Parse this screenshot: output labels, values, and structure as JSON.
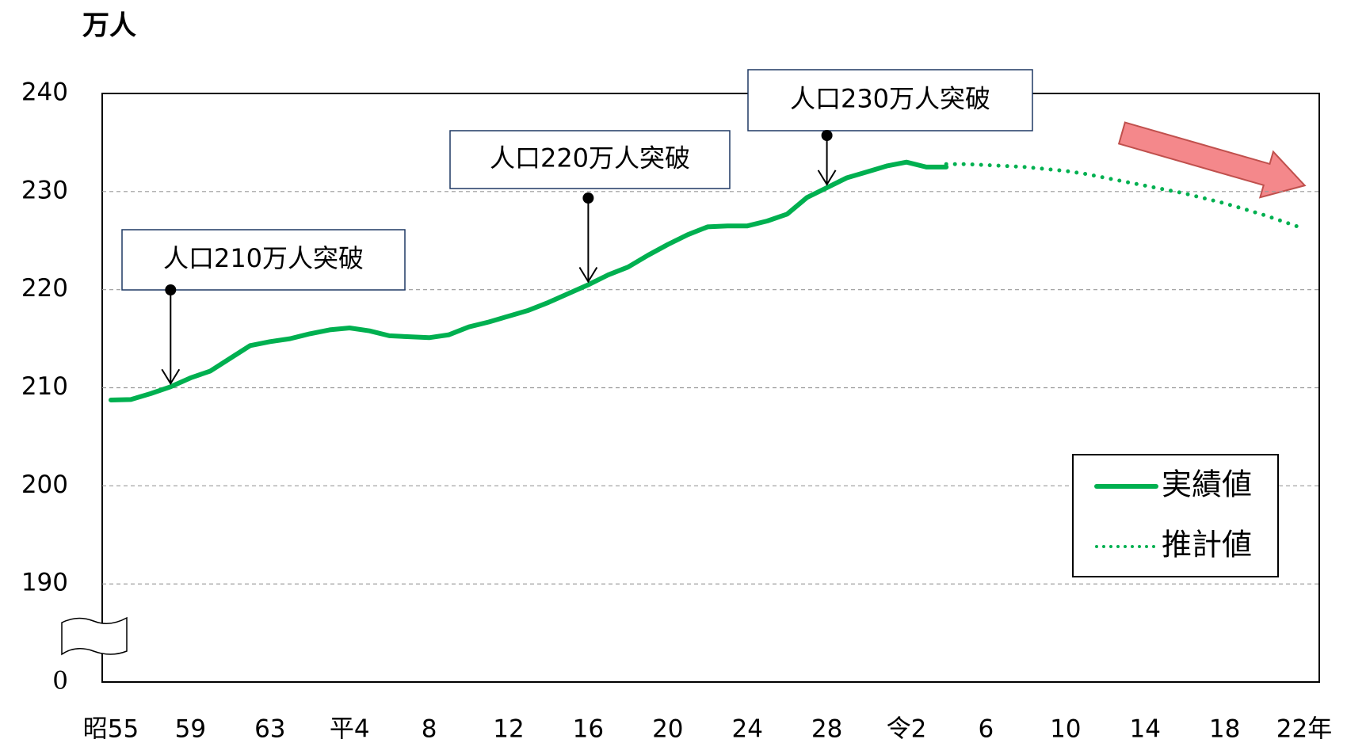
{
  "chart_data": {
    "type": "line",
    "y_label": "万人",
    "categories": [
      "昭55",
      null,
      null,
      null,
      "59",
      null,
      null,
      null,
      "63",
      null,
      null,
      null,
      "平4",
      null,
      null,
      null,
      "8",
      null,
      null,
      null,
      "12",
      null,
      null,
      null,
      "16",
      null,
      null,
      null,
      "20",
      null,
      null,
      null,
      "24",
      null,
      null,
      null,
      "28",
      null,
      null,
      null,
      "令2",
      null,
      null,
      null,
      "6",
      null,
      null,
      null,
      "10",
      null,
      null,
      null,
      "14",
      null,
      null,
      null,
      "18",
      null,
      null,
      null,
      "22年"
    ],
    "series": [
      {
        "name": "実績値",
        "color": "#00b050",
        "style": "solid",
        "values": [
          208.75,
          208.8,
          209.4,
          210.1,
          211.0,
          211.7,
          213.0,
          214.3,
          214.7,
          215.0,
          215.5,
          215.9,
          216.1,
          215.8,
          215.3,
          215.2,
          215.1,
          215.4,
          216.2,
          216.7,
          217.3,
          217.9,
          218.7,
          219.6,
          220.5,
          221.5,
          222.3,
          223.5,
          224.6,
          225.6,
          226.4,
          226.5,
          226.5,
          227.0,
          227.7,
          229.4,
          230.4,
          231.4,
          232.0,
          232.6,
          233.0,
          232.5,
          232.5,
          null,
          null,
          null,
          null,
          null,
          null,
          null,
          null,
          null,
          null,
          null,
          null,
          null,
          null,
          null,
          null,
          null,
          null
        ]
      },
      {
        "name": "推計値",
        "color": "#00b050",
        "style": "dotted",
        "values": [
          null,
          null,
          null,
          null,
          null,
          null,
          null,
          null,
          null,
          null,
          null,
          null,
          null,
          null,
          null,
          null,
          null,
          null,
          null,
          null,
          null,
          null,
          null,
          null,
          null,
          null,
          null,
          null,
          null,
          null,
          null,
          null,
          null,
          null,
          null,
          null,
          null,
          null,
          null,
          null,
          null,
          null,
          232.8,
          232.8,
          232.7,
          232.6,
          232.5,
          232.3,
          232.1,
          231.8,
          231.4,
          231.0,
          230.6,
          230.2,
          229.8,
          229.3,
          228.8,
          228.2,
          227.6,
          226.9,
          226.2
        ]
      }
    ],
    "ylim": [
      180,
      240
    ],
    "yticks": [
      {
        "value": 180,
        "label": "0"
      },
      190,
      200,
      210,
      220,
      230,
      240
    ],
    "grid": true,
    "legend": "lower right",
    "annotations": [
      "人口210万人突破",
      "人口220万人突破",
      "人口230万人突破"
    ]
  }
}
